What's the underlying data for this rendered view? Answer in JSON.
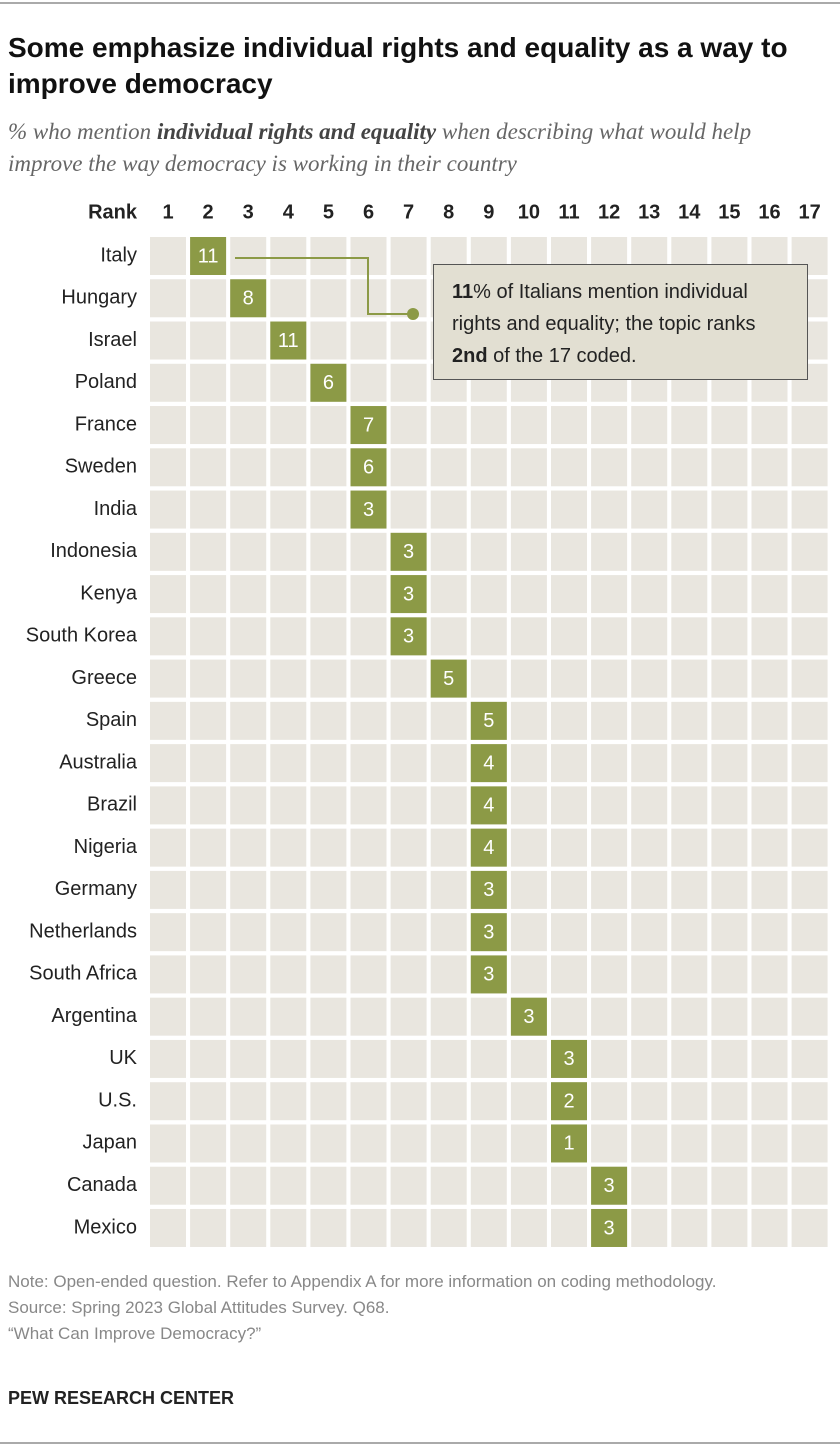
{
  "chart_data": {
    "type": "rank-grid",
    "title": "Some emphasize individual rights and equality as a way to improve democracy",
    "subtitle": [
      "% who mention ",
      "individual rights and equality",
      " when describing what would help improve the way democracy is working in their country"
    ],
    "rank_label": "Rank",
    "ranks": [
      1,
      2,
      3,
      4,
      5,
      6,
      7,
      8,
      9,
      10,
      11,
      12,
      13,
      14,
      15,
      16,
      17
    ],
    "categories": [
      "Italy",
      "Hungary",
      "Israel",
      "Poland",
      "France",
      "Sweden",
      "India",
      "Indonesia",
      "Kenya",
      "South Korea",
      "Greece",
      "Spain",
      "Australia",
      "Brazil",
      "Nigeria",
      "Germany",
      "Netherlands",
      "South Africa",
      "Argentina",
      "UK",
      "U.S.",
      "Japan",
      "Canada",
      "Mexico"
    ],
    "rank": [
      2,
      3,
      4,
      5,
      6,
      6,
      6,
      7,
      7,
      7,
      8,
      9,
      9,
      9,
      9,
      9,
      9,
      9,
      10,
      11,
      11,
      11,
      12,
      12
    ],
    "values": [
      11,
      8,
      11,
      6,
      7,
      6,
      3,
      3,
      3,
      3,
      5,
      5,
      4,
      4,
      4,
      3,
      3,
      3,
      3,
      3,
      2,
      1,
      3,
      3
    ],
    "color": "#8c9a46",
    "cell_color": "#e9e6df",
    "annotation": [
      "11",
      "% of Italians mention individual rights and equality; the topic ranks ",
      "2nd",
      " of the 17 coded."
    ],
    "note": "Note: Open-ended question. Refer to Appendix A for more information on coding methodology.",
    "source": "Source: Spring 2023 Global Attitudes Survey. Q68.",
    "report": "“What Can Improve Democracy?”",
    "footer": "PEW RESEARCH CENTER"
  }
}
